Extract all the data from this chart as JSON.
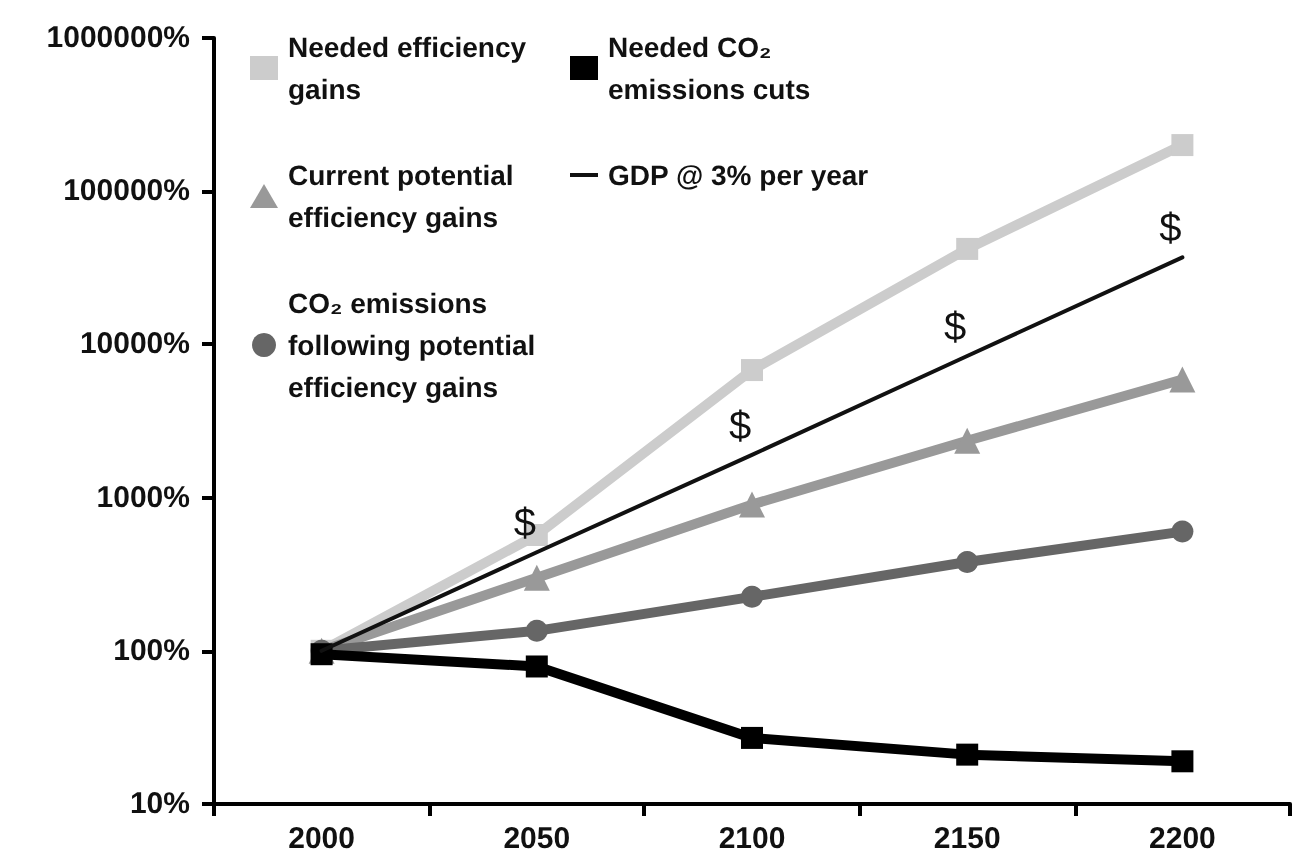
{
  "chart_data": {
    "type": "line",
    "categories": [
      "2000",
      "2050",
      "2100",
      "2150",
      "2200"
    ],
    "series": [
      {
        "name": "Needed efficiency\ngains",
        "color": "#cccccc",
        "marker": "square",
        "values": [
          100,
          570,
          6800,
          42000,
          200000
        ]
      },
      {
        "name": "Current potential\nefficiency gains",
        "color": "#999999",
        "marker": "triangle",
        "values": [
          100,
          300,
          900,
          2350,
          5900
        ]
      },
      {
        "name": "CO₂ emissions\nfollowing potential\nefficiency gains",
        "color": "#666666",
        "marker": "circle",
        "values": [
          100,
          135,
          225,
          380,
          600
        ]
      },
      {
        "name": "Needed CO₂\nemissions cuts",
        "color": "#000000",
        "marker": "square",
        "values": [
          95,
          79,
          27,
          21,
          19
        ]
      },
      {
        "name": "GDP @ 3% per year",
        "color": "#111111",
        "marker": "none",
        "values": [
          100,
          440,
          1900,
          8400,
          37000
        ]
      }
    ],
    "annotations": [
      {
        "text": "$",
        "x": "2050",
        "y": 440
      },
      {
        "text": "$",
        "x": "2100",
        "y": 1900
      },
      {
        "text": "$",
        "x": "2150",
        "y": 8400
      },
      {
        "text": "$",
        "x": "2200",
        "y": 37000
      }
    ],
    "log": "y",
    "ylim": [
      10,
      1000000
    ],
    "yticks": [
      {
        "value": 10,
        "label": "10%"
      },
      {
        "value": 100,
        "label": "100%"
      },
      {
        "value": 1000,
        "label": "1000%"
      },
      {
        "value": 10000,
        "label": "10000%"
      },
      {
        "value": 100000,
        "label": "100000%"
      },
      {
        "value": 1000000,
        "label": "1000000%"
      }
    ],
    "grid": false,
    "legend": "top left",
    "line_style": "solid"
  }
}
